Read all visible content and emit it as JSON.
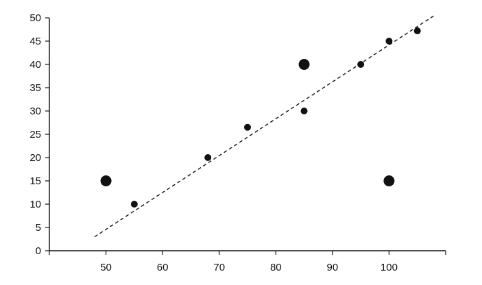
{
  "chart_data": {
    "type": "scatter",
    "title": "",
    "xlabel": "",
    "ylabel": "",
    "xlim": [
      40,
      110
    ],
    "ylim": [
      0,
      50
    ],
    "x_ticks": [
      50,
      60,
      70,
      80,
      90,
      100
    ],
    "y_ticks": [
      0,
      5,
      10,
      15,
      20,
      25,
      30,
      35,
      40,
      45,
      50
    ],
    "grid": false,
    "legend": "none",
    "series": [
      {
        "kind": "points",
        "x": [
          55,
          68,
          75,
          85,
          95,
          100,
          105
        ],
        "y": [
          10,
          20,
          26.5,
          30,
          40,
          45,
          47.2
        ]
      },
      {
        "kind": "highlighted-points",
        "x": [
          50,
          85,
          100
        ],
        "y": [
          15,
          40,
          15
        ]
      },
      {
        "kind": "dashed-trend-line",
        "x": [
          48,
          108
        ],
        "y": [
          3,
          50.5
        ]
      }
    ],
    "colors": {
      "ink": "#111111",
      "background": "#ffffff"
    }
  }
}
